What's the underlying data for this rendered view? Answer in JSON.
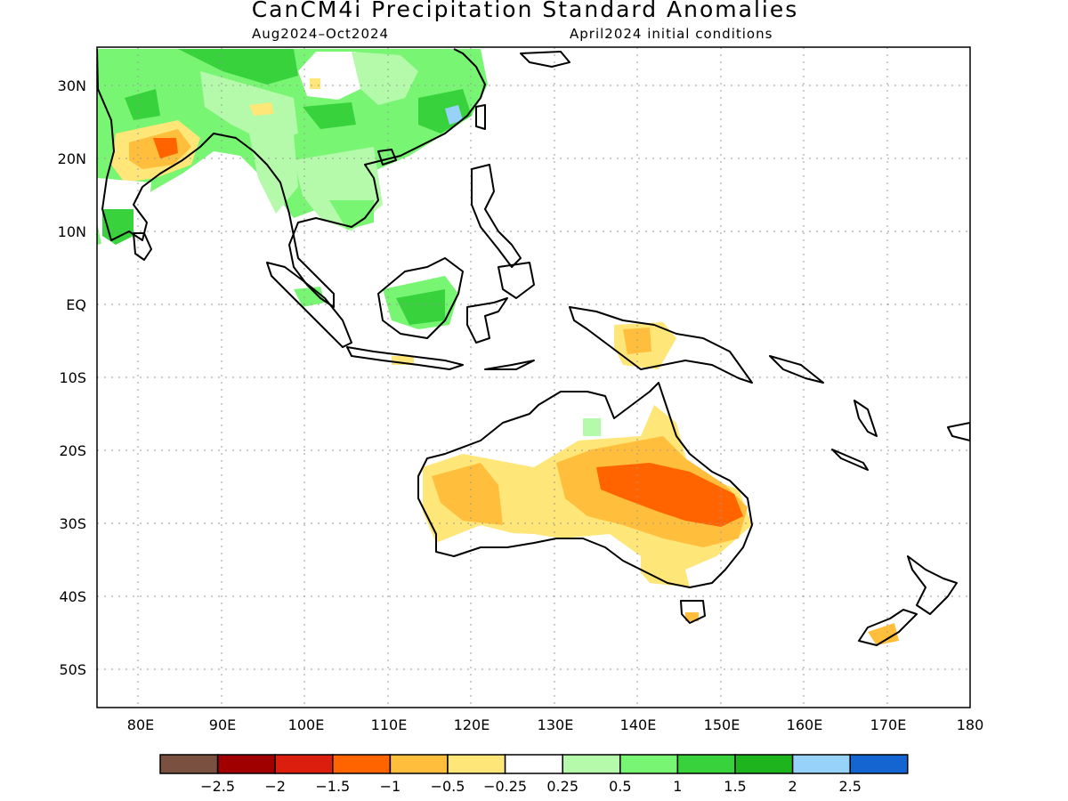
{
  "title": "CanCM4i Precipitation Standard Anomalies",
  "subtitle_left": "Aug2024–Oct2024",
  "subtitle_right": "April2024 initial conditions",
  "map": {
    "lon_range": [
      75,
      180
    ],
    "lat_range": [
      -55,
      35
    ],
    "lon_ticks": [
      "80E",
      "90E",
      "100E",
      "110E",
      "120E",
      "130E",
      "140E",
      "150E",
      "160E",
      "170E",
      "180"
    ],
    "lat_ticks": [
      "30N",
      "20N",
      "10N",
      "EQ",
      "10S",
      "20S",
      "30S",
      "40S",
      "50S"
    ],
    "grid": "dotted"
  },
  "colorbar": {
    "colors": [
      "#7a5040",
      "#a00000",
      "#dc1e0f",
      "#ff6400",
      "#ffbe3c",
      "#ffe678",
      "#ffffff",
      "#b4faaa",
      "#78f573",
      "#37d23c",
      "#1eb41e",
      "#96d2fa",
      "#1464d2"
    ],
    "labels": [
      "−2.5",
      "−2",
      "−1.5",
      "−1",
      "−0.5",
      "−0.25",
      "0.25",
      "0.5",
      "1",
      "1.5",
      "2",
      "2.5"
    ]
  }
}
